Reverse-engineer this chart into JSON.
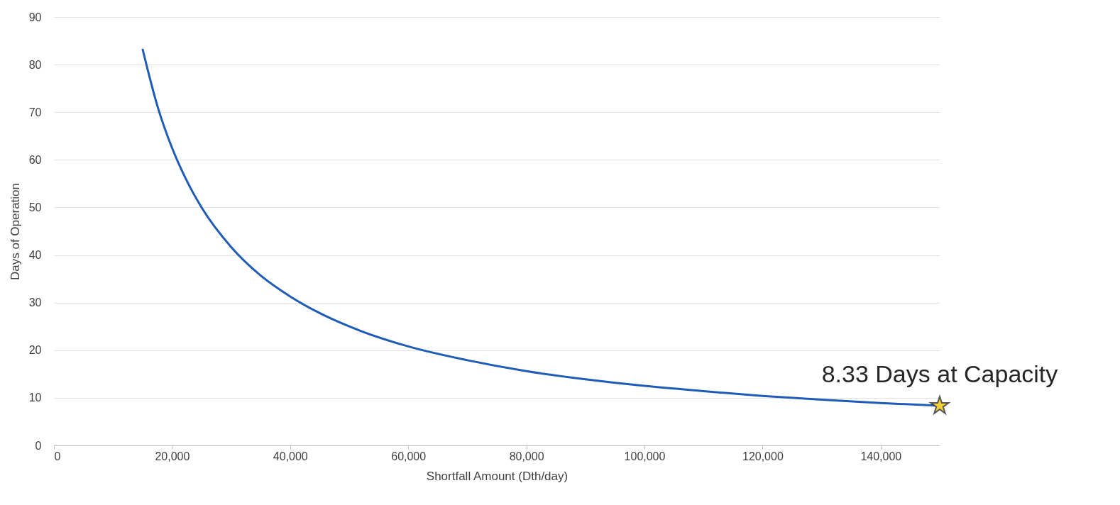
{
  "chart_data": {
    "type": "line",
    "xlabel": "Shortfall Amount (Dth/day)",
    "ylabel": "Days of Operation",
    "xlim": [
      0,
      150000
    ],
    "xticks": [
      0,
      {
        "value": 20000,
        "label": "20,000"
      },
      {
        "value": 40000,
        "label": "40,000"
      },
      {
        "value": 60000,
        "label": "60,000"
      },
      {
        "value": 80000,
        "label": "80,000"
      },
      {
        "value": 100000,
        "label": "100,000"
      },
      {
        "value": 120000,
        "label": "120,000"
      },
      {
        "value": 140000,
        "label": "140,000"
      }
    ],
    "ylim": [
      0,
      90
    ],
    "yticks": [
      0,
      10,
      20,
      30,
      40,
      50,
      60,
      70,
      80,
      90
    ],
    "grid": "y",
    "series": [
      {
        "color": "#1f5cb8",
        "x": [
          15000,
          17500,
          20000,
          22500,
          25000,
          30000,
          35000,
          40000,
          45000,
          50000,
          60000,
          70000,
          80000,
          90000,
          100000,
          110000,
          120000,
          130000,
          140000,
          150000
        ],
        "values": [
          83.3,
          71.4,
          62.5,
          55.6,
          50,
          41.7,
          35.7,
          31.3,
          27.8,
          25,
          20.8,
          17.9,
          15.6,
          13.9,
          12.5,
          11.4,
          10.4,
          9.6,
          8.9,
          8.33
        ]
      },
      {
        "type": "scatter",
        "marker": "star",
        "color": "#f2d03b",
        "x": [
          150000
        ],
        "values": [
          8.33
        ]
      }
    ],
    "annotations": [
      {
        "text": "8.33 Days at Capacity",
        "x": 150000,
        "y": 8.33
      }
    ]
  }
}
